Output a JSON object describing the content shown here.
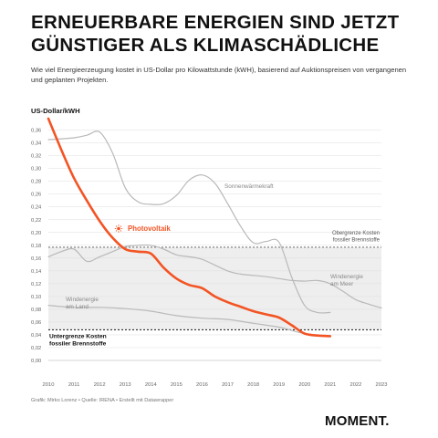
{
  "title": [
    "Erneuerbare Energien sind jetzt",
    "günstiger als klimaschädliche"
  ],
  "subtitle": "Wie viel Energieerzeugung kostet in US-Dollar pro Kilowattstunde (kWH), basierend auf Auktionspreisen von vergangenen und geplanten Projekten.",
  "unit_label": "US-Dollar/kWH",
  "footer": "Grafik: Mirko Lorenz • Quelle: IRENA • Erstellt mit Datawrapper",
  "logo": "MOMENT.",
  "colors": {
    "photovoltaik": "#f35424",
    "grey_series": "#b9b9b9",
    "band": "#eeeeee",
    "grid": "#dddddd"
  },
  "chart_data": {
    "type": "line",
    "x_ticks": [
      "2010",
      "2011",
      "2012",
      "2013",
      "2014",
      "2015",
      "2016",
      "2017",
      "2018",
      "2019",
      "2020",
      "2021",
      "2022",
      "2023"
    ],
    "y_ticks": [
      "0,36",
      "0,34",
      "0,32",
      "0,30",
      "0,28",
      "0,26",
      "0,24",
      "0,22",
      "0,20",
      "0,18",
      "0,16",
      "0,14",
      "0,12",
      "0,10",
      "0,08",
      "0,06",
      "0,04",
      "0,02",
      "0,00"
    ],
    "xlim": [
      2010,
      2023
    ],
    "ylim": [
      0,
      0.37
    ],
    "grid": true,
    "band": {
      "upper": 0.177,
      "lower": 0.048,
      "upper_label": [
        "Obergrenze Kosten",
        "fossiler Brennstoffe"
      ],
      "lower_label": [
        "Untergrenze Kosten",
        "fossiler Brennstoffe"
      ]
    },
    "series": [
      {
        "name": "Photovoltaik",
        "highlight": true,
        "x": [
          2010,
          2010.5,
          2011,
          2011.5,
          2012,
          2012.5,
          2013,
          2013.5,
          2014,
          2014.5,
          2015,
          2015.5,
          2016,
          2016.5,
          2017,
          2017.5,
          2018,
          2018.5,
          2019,
          2019.5,
          2020,
          2020.5,
          2021
        ],
        "values": [
          0.378,
          0.33,
          0.285,
          0.25,
          0.218,
          0.192,
          0.174,
          0.17,
          0.167,
          0.145,
          0.128,
          0.118,
          0.113,
          0.1,
          0.091,
          0.084,
          0.077,
          0.072,
          0.067,
          0.055,
          0.042,
          0.039,
          0.038
        ]
      },
      {
        "name": "Sonnenwärmekraft",
        "x": [
          2010,
          2011,
          2011.5,
          2012,
          2012.5,
          2013,
          2013.5,
          2014,
          2014.5,
          2015,
          2015.5,
          2016,
          2016.5,
          2017,
          2017.5,
          2018,
          2018.5,
          2019,
          2019.5,
          2020,
          2020.5,
          2021
        ],
        "values": [
          0.345,
          0.348,
          0.352,
          0.357,
          0.325,
          0.27,
          0.248,
          0.244,
          0.245,
          0.258,
          0.282,
          0.29,
          0.277,
          0.245,
          0.21,
          0.184,
          0.186,
          0.185,
          0.13,
          0.086,
          0.075,
          0.075
        ]
      },
      {
        "name": "Windenergie am Meer",
        "x": [
          2010,
          2010.5,
          2011,
          2011.5,
          2012,
          2012.5,
          2013,
          2013.5,
          2014,
          2014.5,
          2015,
          2015.5,
          2016,
          2017,
          2017.5,
          2018,
          2018.5,
          2019,
          2019.5,
          2020,
          2020.5,
          2021,
          2021.5,
          2022,
          2022.5,
          2023
        ],
        "values": [
          0.162,
          0.17,
          0.174,
          0.155,
          0.162,
          0.17,
          0.178,
          0.18,
          0.18,
          0.174,
          0.165,
          0.162,
          0.158,
          0.14,
          0.135,
          0.133,
          0.131,
          0.128,
          0.125,
          0.124,
          0.125,
          0.12,
          0.108,
          0.095,
          0.088,
          0.082
        ]
      },
      {
        "name": "Windenergie am Land",
        "x": [
          2010,
          2011,
          2012,
          2013,
          2014,
          2015,
          2016,
          2017,
          2018,
          2019,
          2020,
          2021
        ],
        "values": [
          0.086,
          0.083,
          0.083,
          0.081,
          0.077,
          0.07,
          0.066,
          0.064,
          0.058,
          0.052,
          0.042,
          0.038
        ]
      }
    ],
    "annotations": [
      {
        "text": [
          "Photovoltaik"
        ],
        "series": "Photovoltaik"
      },
      {
        "text": [
          "Sonnenwärmekraft"
        ],
        "series": "Sonnenwärmekraft"
      },
      {
        "text": [
          "Windenergie",
          "am Meer"
        ],
        "series": "Windenergie am Meer"
      },
      {
        "text": [
          "Windenergie",
          "am Land"
        ],
        "series": "Windenergie am Land"
      }
    ]
  }
}
